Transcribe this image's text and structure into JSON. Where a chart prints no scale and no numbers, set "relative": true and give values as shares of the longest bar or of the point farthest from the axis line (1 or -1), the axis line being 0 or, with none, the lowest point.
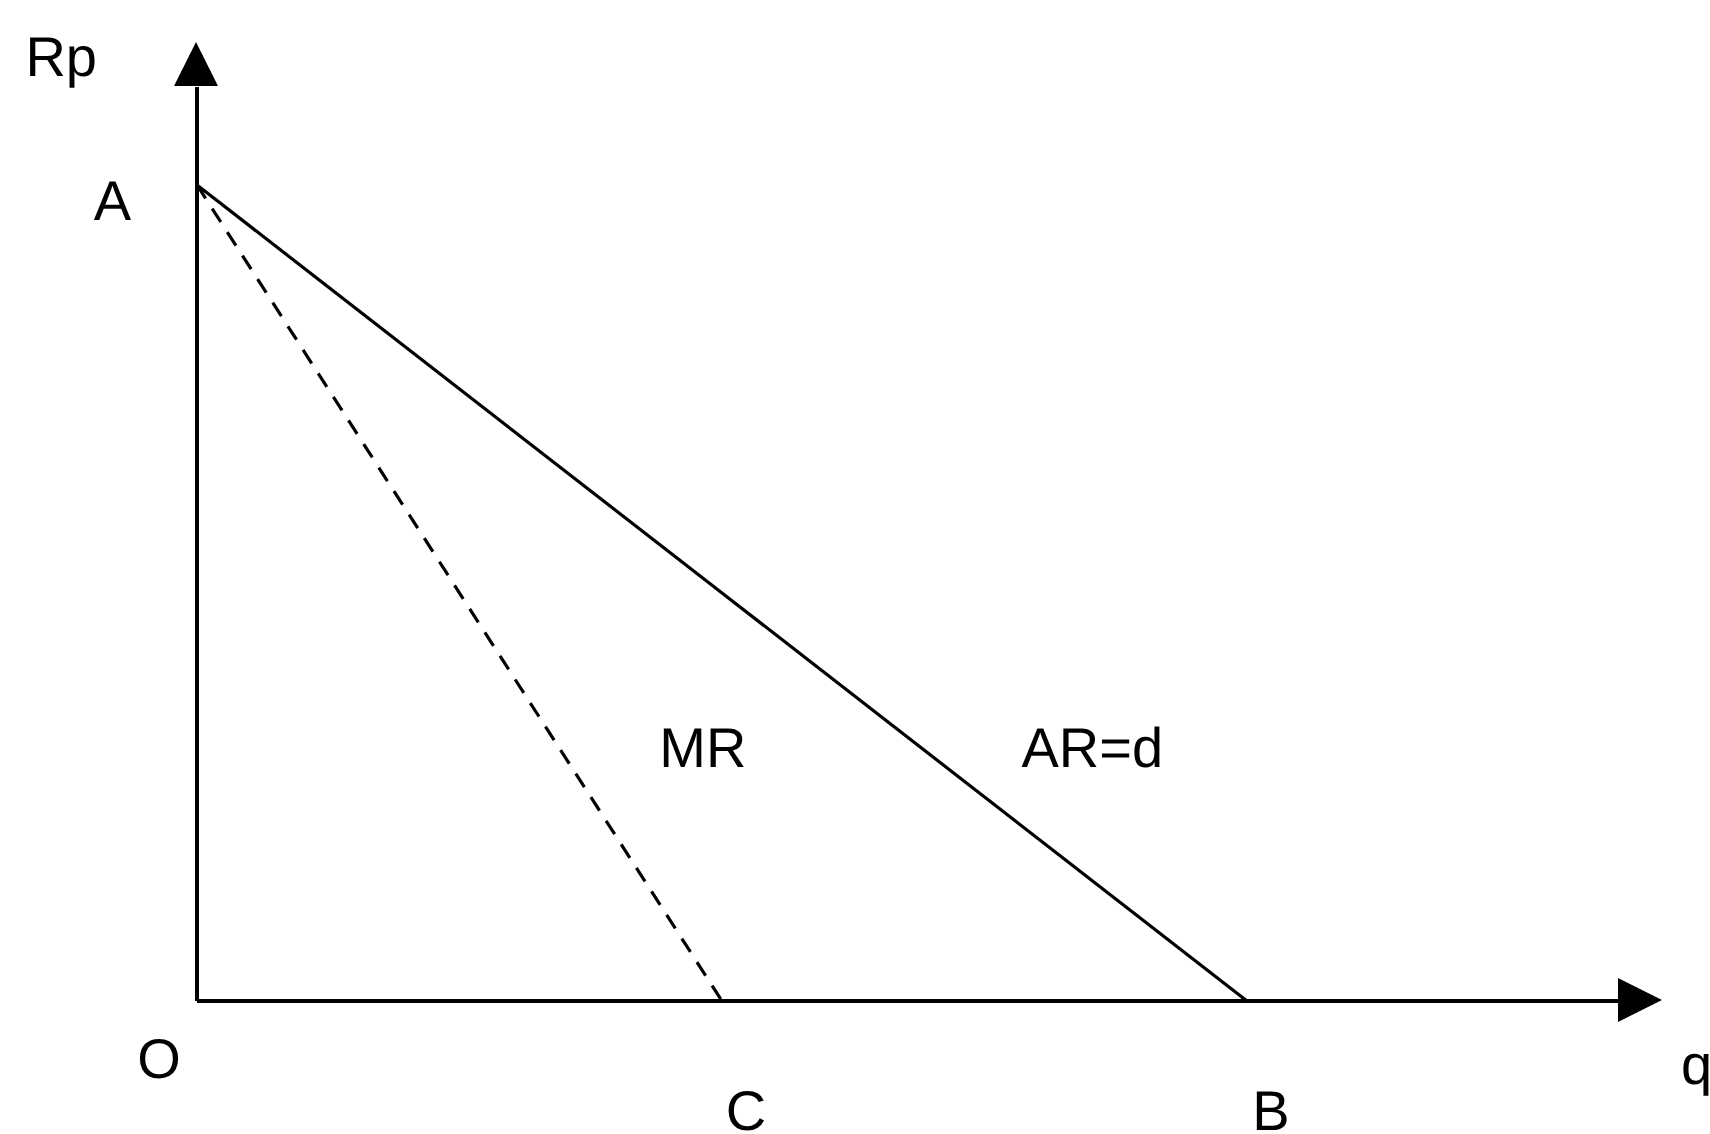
{
  "chart_data": {
    "type": "line",
    "relative": true,
    "xlabel": "q",
    "ylabel": "Rp",
    "categories": [
      "O",
      "C",
      "B"
    ],
    "series": [
      {
        "name": "AR=d",
        "color": "#000000",
        "values": [
          1,
          0.5,
          0
        ],
        "line_style": "solid"
      },
      {
        "name": "MR",
        "color": "#000000",
        "values": [
          1,
          0,
          null
        ],
        "line_style": "dashed"
      }
    ],
    "annotations": [
      "A"
    ]
  }
}
